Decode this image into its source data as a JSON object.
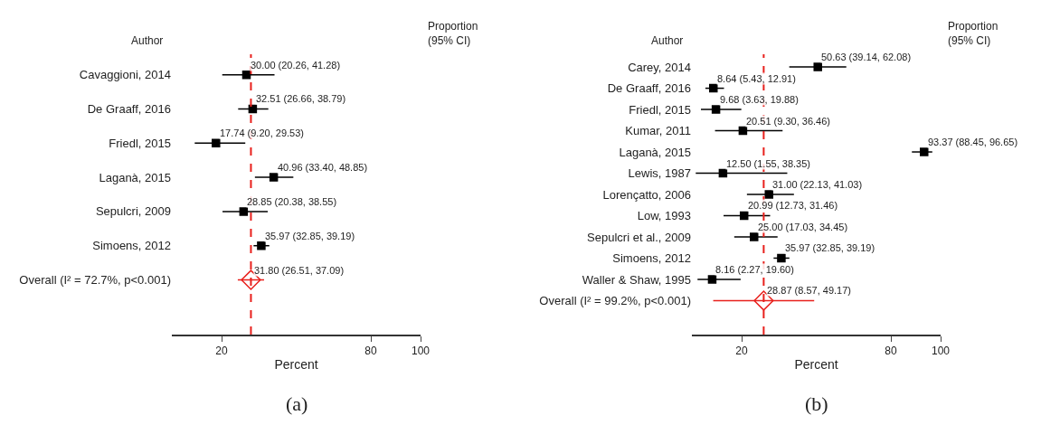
{
  "chart_data": [
    {
      "type": "scatter",
      "orientation": "horizontal",
      "ylabel": "Author",
      "xlabel": "Percent",
      "annotations": [
        "Proportion\n(95% CI)",
        "(a)"
      ],
      "categories": [
        "Cavaggioni, 2014",
        "De Graaff, 2016",
        "Friedl, 2015",
        "Laganà, 2015",
        "Sepulcri, 2009",
        "Simoens, 2012",
        "Overall (I² = 72.7%, p<0.001)"
      ],
      "series": [
        {
          "color": "#000000",
          "marker": "square",
          "values": [
            30.0,
            32.51,
            17.74,
            40.96,
            28.85,
            35.97,
            null
          ],
          "errors": [
            [
              20.26,
              41.28
            ],
            [
              26.66,
              38.79
            ],
            [
              9.2,
              29.53
            ],
            [
              33.4,
              48.85
            ],
            [
              20.38,
              38.55
            ],
            [
              32.85,
              39.19
            ],
            null
          ],
          "value_labels": [
            "30.00 (20.26, 41.28)",
            "32.51 (26.66, 38.79)",
            "17.74 (9.20, 29.53)",
            "40.96 (33.40, 48.85)",
            "28.85 (20.38, 38.55)",
            "35.97 (32.85, 39.19)",
            null
          ]
        },
        {
          "color": "#e8201c",
          "marker": "diamond",
          "values": [
            null,
            null,
            null,
            null,
            null,
            null,
            31.8
          ],
          "errors": [
            null,
            null,
            null,
            null,
            null,
            null,
            [
              26.51,
              37.09
            ]
          ],
          "value_labels": [
            null,
            null,
            null,
            null,
            null,
            null,
            "31.80 (26.51, 37.09)"
          ]
        }
      ],
      "xlim": [
        0,
        100
      ],
      "xticks": [
        20,
        80,
        100
      ],
      "ref_lines": [
        {
          "axis": "x",
          "value": 31.8,
          "color": "#e8201c",
          "line_style": "dashed"
        }
      ]
    },
    {
      "type": "scatter",
      "orientation": "horizontal",
      "ylabel": "Author",
      "xlabel": "Percent",
      "annotations": [
        "Proportion\n(95% CI)",
        "(b)"
      ],
      "categories": [
        "Carey, 2014",
        "De Graaff, 2016",
        "Friedl, 2015",
        "Kumar, 2011",
        "Laganà, 2015",
        "Lewis, 1987",
        "Lorençatto, 2006",
        "Low, 1993",
        "Sepulcri et al., 2009",
        "Simoens, 2012",
        "Waller & Shaw, 1995",
        "Overall (I² = 99.2%, p<0.001)"
      ],
      "series": [
        {
          "color": "#000000",
          "marker": "square",
          "values": [
            50.63,
            8.64,
            9.68,
            20.51,
            93.37,
            12.5,
            31.0,
            20.99,
            25.0,
            35.97,
            8.16,
            null
          ],
          "errors": [
            [
              39.14,
              62.08
            ],
            [
              5.43,
              12.91
            ],
            [
              3.63,
              19.88
            ],
            [
              9.3,
              36.46
            ],
            [
              88.45,
              96.65
            ],
            [
              1.55,
              38.35
            ],
            [
              22.13,
              41.03
            ],
            [
              12.73,
              31.46
            ],
            [
              17.03,
              34.45
            ],
            [
              32.85,
              39.19
            ],
            [
              2.27,
              19.6
            ],
            null
          ],
          "value_labels": [
            "50.63 (39.14, 62.08)",
            "8.64 (5.43, 12.91)",
            "9.68 (3.63, 19.88)",
            "20.51 (9.30, 36.46)",
            "93.37 (88.45, 96.65)",
            "12.50 (1.55, 38.35)",
            "31.00 (22.13, 41.03)",
            "20.99 (12.73, 31.46)",
            "25.00 (17.03, 34.45)",
            "35.97 (32.85, 39.19)",
            "8.16 (2.27, 19.60)",
            null
          ]
        },
        {
          "color": "#e8201c",
          "marker": "diamond",
          "values": [
            null,
            null,
            null,
            null,
            null,
            null,
            null,
            null,
            null,
            null,
            null,
            28.87
          ],
          "errors": [
            null,
            null,
            null,
            null,
            null,
            null,
            null,
            null,
            null,
            null,
            null,
            [
              8.57,
              49.17
            ]
          ],
          "value_labels": [
            null,
            null,
            null,
            null,
            null,
            null,
            null,
            null,
            null,
            null,
            null,
            "28.87 (8.57, 49.17)"
          ]
        }
      ],
      "xlim": [
        0,
        100
      ],
      "xticks": [
        20,
        80,
        100
      ],
      "ref_lines": [
        {
          "axis": "x",
          "value": 28.87,
          "color": "#e8201c",
          "line_style": "dashed"
        }
      ]
    }
  ]
}
